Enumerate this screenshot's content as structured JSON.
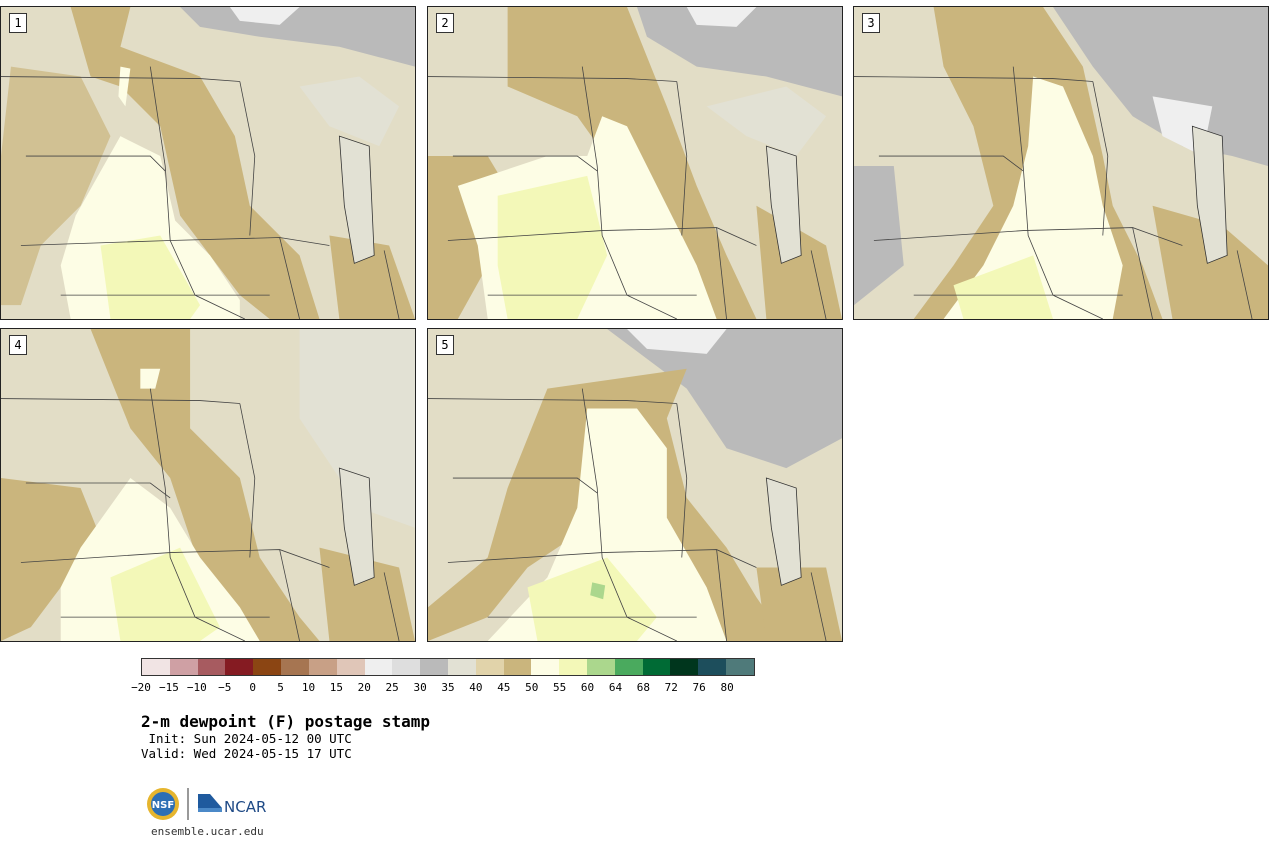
{
  "panels": [
    {
      "label": "1"
    },
    {
      "label": "2"
    },
    {
      "label": "3"
    },
    {
      "label": "4"
    },
    {
      "label": "5"
    }
  ],
  "colorbar": {
    "colors": [
      "#f1e4e4",
      "#cfa0a4",
      "#a75b60",
      "#851b22",
      "#8b4513",
      "#a67551",
      "#c8a086",
      "#e0c6b8",
      "#efefef",
      "#dedede",
      "#bababa",
      "#e2e1d4",
      "#e1d3aa",
      "#cab57d",
      "#fdfde5",
      "#f3f8b8",
      "#abd78d",
      "#4aaa5e",
      "#006b35",
      "#00361d",
      "#1d4e5c",
      "#4f7a7a"
    ],
    "tick_labels": [
      "−20",
      "−15",
      "−10",
      "−5",
      "0",
      "5",
      "10",
      "15",
      "20",
      "25",
      "30",
      "35",
      "40",
      "45",
      "50",
      "55",
      "60",
      "64",
      "68",
      "72",
      "76",
      "80"
    ]
  },
  "title": "2-m dewpoint (F) postage stamp",
  "init": " Init: Sun 2024-05-12 00 UTC",
  "valid": "Valid: Wed 2024-05-15 17 UTC",
  "logos": {
    "nsf": "NSF",
    "ncar": "NCAR"
  },
  "website": "ensemble.ucar.edu"
}
